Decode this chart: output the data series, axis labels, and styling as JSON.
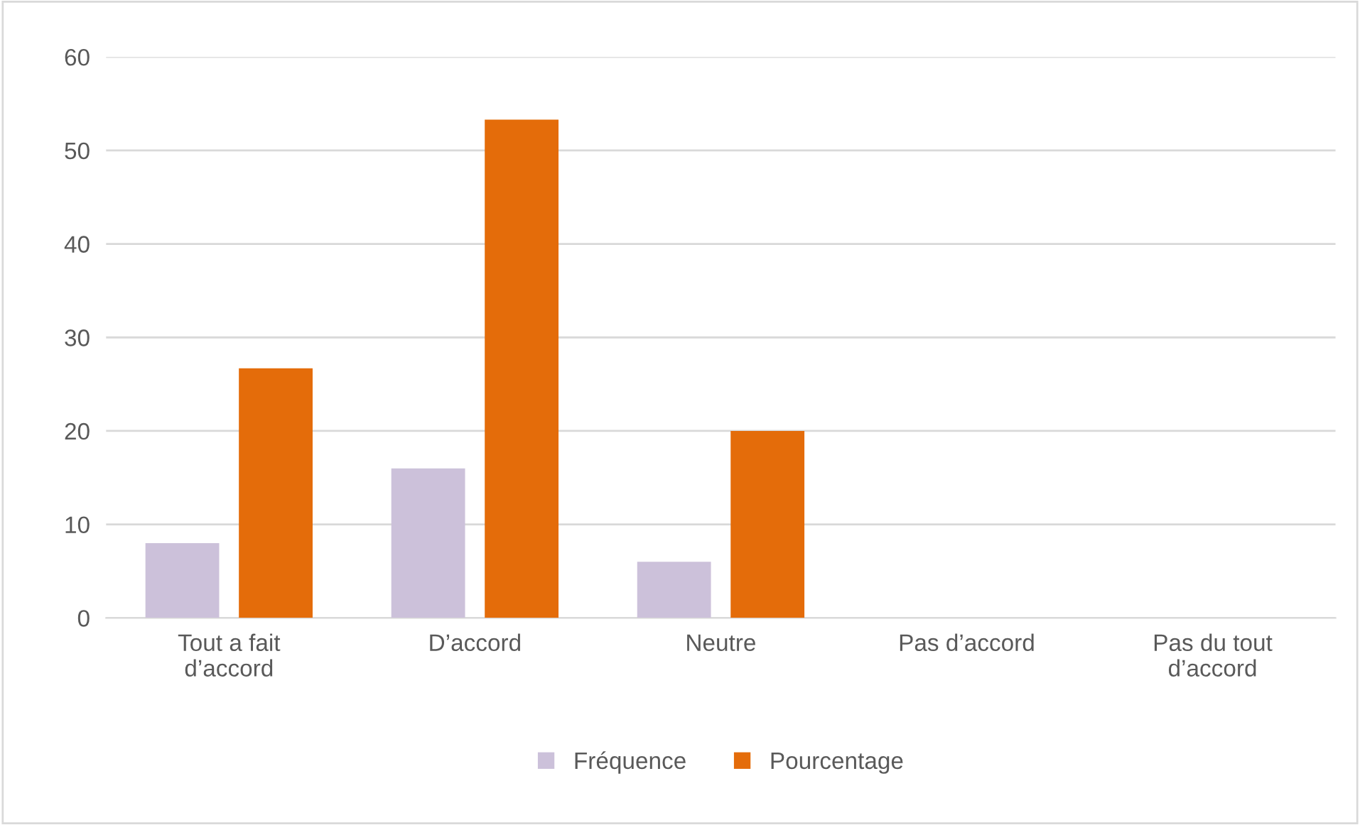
{
  "chart_data": {
    "type": "bar",
    "categories": [
      "Tout a fait d’accord",
      "D’accord",
      "Neutre",
      "Pas d’accord",
      "Pas du tout d’accord"
    ],
    "series": [
      {
        "name": "Fréquence",
        "color": "#ccc1da",
        "values": [
          8,
          16,
          6,
          0,
          0
        ]
      },
      {
        "name": "Pourcentage",
        "color": "#e46c0a",
        "values": [
          26.7,
          53.3,
          20,
          0,
          0
        ]
      }
    ],
    "ylim": [
      0,
      60
    ],
    "yticks": [
      0,
      10,
      20,
      30,
      40,
      50,
      60
    ],
    "grid": "y",
    "legend": "bottom"
  }
}
